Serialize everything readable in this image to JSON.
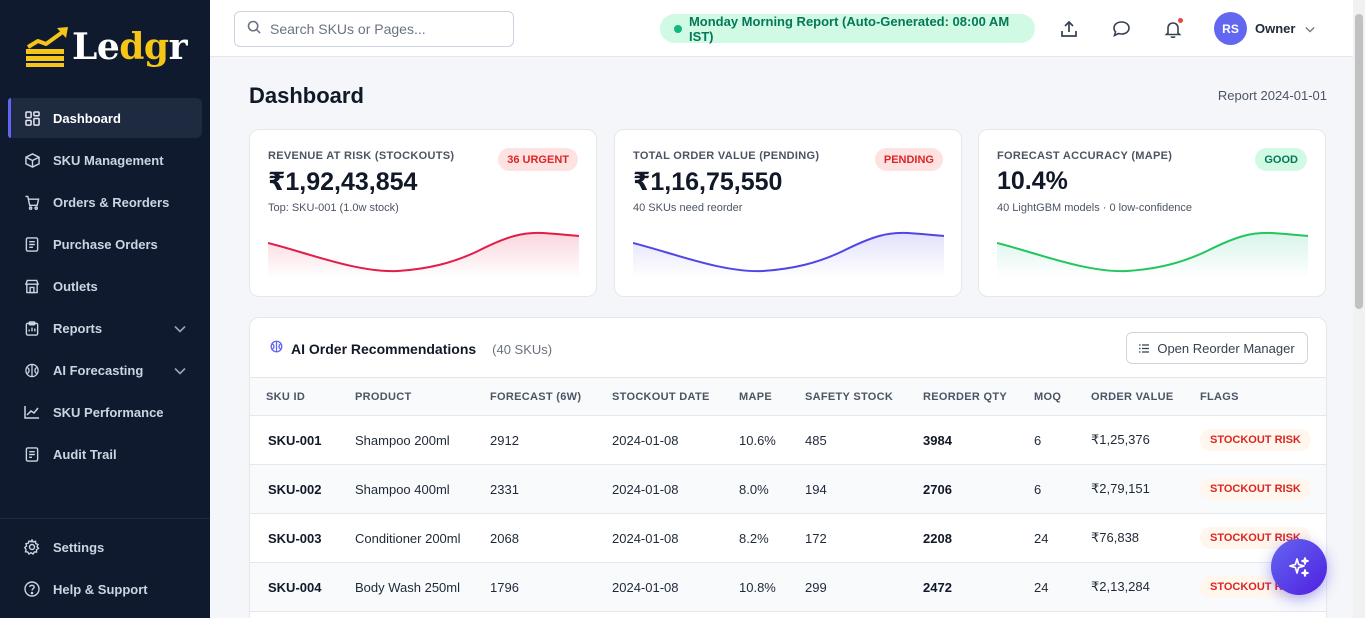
{
  "brand": {
    "name_main": "Le",
    "name_accent": "dg",
    "name_end": "r"
  },
  "sidebar": {
    "items": [
      {
        "label": "Dashboard",
        "icon": "dashboard-icon",
        "active": true
      },
      {
        "label": "SKU Management",
        "icon": "box-icon"
      },
      {
        "label": "Orders & Reorders",
        "icon": "cart-icon"
      },
      {
        "label": "Purchase Orders",
        "icon": "document-icon"
      },
      {
        "label": "Outlets",
        "icon": "store-icon"
      },
      {
        "label": "Reports",
        "icon": "clipboard-icon",
        "expandable": true
      },
      {
        "label": "AI Forecasting",
        "icon": "brain-icon",
        "expandable": true
      },
      {
        "label": "SKU Performance",
        "icon": "trend-icon"
      },
      {
        "label": "Audit Trail",
        "icon": "audit-icon"
      }
    ],
    "bottom": [
      {
        "label": "Settings",
        "icon": "gear-icon"
      },
      {
        "label": "Help & Support",
        "icon": "help-icon"
      }
    ]
  },
  "topbar": {
    "search_placeholder": "Search SKUs or Pages...",
    "report_status": "Monday Morning Report (Auto-Generated: 08:00 AM IST)",
    "user_initials": "RS",
    "user_name": "Owner"
  },
  "page": {
    "title": "Dashboard",
    "report_date": "Report 2024-01-01"
  },
  "kpis": [
    {
      "label": "REVENUE AT RISK (STOCKOUTS)",
      "badge": "36 URGENT",
      "value": "₹1,92,43,854",
      "sub": "Top: SKU-001 (1.0w stock)",
      "color": "#e11d48"
    },
    {
      "label": "TOTAL ORDER VALUE (PENDING)",
      "badge": "PENDING",
      "value": "₹1,16,75,550",
      "sub": "40 SKUs need reorder",
      "color": "#4f46e5"
    },
    {
      "label": "FORECAST ACCURACY (MAPE)",
      "badge": "GOOD",
      "value": "10.4%",
      "sub": "40 LightGBM models · 0 low-confidence",
      "color": "#10b981"
    }
  ],
  "recommendations": {
    "title": "AI Order Recommendations",
    "count": "(40 SKUs)",
    "button": "Open Reorder Manager",
    "columns": [
      "SKU ID",
      "PRODUCT",
      "FORECAST (6W)",
      "STOCKOUT DATE",
      "MAPE",
      "SAFETY STOCK",
      "REORDER QTY",
      "MOQ",
      "ORDER VALUE",
      "FLAGS"
    ],
    "rows": [
      {
        "sku": "SKU-001",
        "product": "Shampoo 200ml",
        "forecast": "2912",
        "stockout": "2024-01-08",
        "mape": "10.6%",
        "safety": "485",
        "reorder": "3984",
        "moq": "6",
        "value": "₹1,25,376",
        "flag": "STOCKOUT RISK"
      },
      {
        "sku": "SKU-002",
        "product": "Shampoo 400ml",
        "forecast": "2331",
        "stockout": "2024-01-08",
        "mape": "8.0%",
        "safety": "194",
        "reorder": "2706",
        "moq": "6",
        "value": "₹2,79,151",
        "flag": "STOCKOUT RISK"
      },
      {
        "sku": "SKU-003",
        "product": "Conditioner 200ml",
        "forecast": "2068",
        "stockout": "2024-01-08",
        "mape": "8.2%",
        "safety": "172",
        "reorder": "2208",
        "moq": "24",
        "value": "₹76,838",
        "flag": "STOCKOUT RISK"
      },
      {
        "sku": "SKU-004",
        "product": "Body Wash 250ml",
        "forecast": "1796",
        "stockout": "2024-01-08",
        "mape": "10.8%",
        "safety": "299",
        "reorder": "2472",
        "moq": "24",
        "value": "₹2,13,284",
        "flag": "STOCKOUT RISK"
      },
      {
        "sku": "",
        "product": "",
        "forecast": "",
        "stockout": "",
        "mape": "",
        "safety": "",
        "reorder": "",
        "moq": "",
        "value": "",
        "flag": ""
      }
    ]
  }
}
